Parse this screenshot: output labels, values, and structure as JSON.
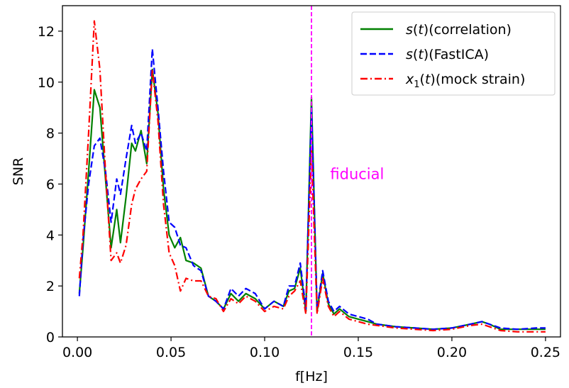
{
  "chart_data": {
    "type": "line",
    "xlabel": "f[Hz]",
    "ylabel": "SNR",
    "xlim": [
      -0.008,
      0.258
    ],
    "ylim": [
      0,
      13
    ],
    "xticks": [
      0.0,
      0.05,
      0.1,
      0.15,
      0.2,
      0.25
    ],
    "xtick_labels": [
      "0.00",
      "0.05",
      "0.10",
      "0.15",
      "0.20",
      "0.25"
    ],
    "yticks": [
      0,
      2,
      4,
      6,
      8,
      10,
      12
    ],
    "ytick_labels": [
      "0",
      "2",
      "4",
      "6",
      "8",
      "10",
      "12"
    ],
    "grid": false,
    "legend_placement": "upper right",
    "annotations": [
      {
        "text": "fiducial",
        "x": 0.135,
        "y": 6.2,
        "color": "#ff00ff"
      }
    ],
    "vline": {
      "x": 0.125,
      "color": "#ff00ff",
      "style": "dashed"
    },
    "series": [
      {
        "name": "s(t)(correlation)",
        "legend_parts": [
          "s",
          "(",
          "t",
          ")(correlation)"
        ],
        "color": "#008000",
        "dash": "solid",
        "x": [
          0.001,
          0.003,
          0.006,
          0.009,
          0.012,
          0.015,
          0.018,
          0.021,
          0.023,
          0.026,
          0.029,
          0.031,
          0.034,
          0.037,
          0.04,
          0.043,
          0.046,
          0.049,
          0.052,
          0.055,
          0.058,
          0.062,
          0.066,
          0.07,
          0.074,
          0.078,
          0.082,
          0.086,
          0.09,
          0.095,
          0.1,
          0.105,
          0.11,
          0.113,
          0.116,
          0.119,
          0.122,
          0.125,
          0.128,
          0.131,
          0.134,
          0.137,
          0.14,
          0.145,
          0.15,
          0.155,
          0.16,
          0.17,
          0.18,
          0.19,
          0.2,
          0.21,
          0.216,
          0.22,
          0.226,
          0.235,
          0.245,
          0.25
        ],
        "y": [
          1.7,
          3.5,
          6.5,
          9.7,
          9.0,
          6.2,
          3.5,
          5.0,
          3.7,
          5.5,
          7.6,
          7.3,
          8.1,
          6.8,
          10.5,
          8.8,
          5.8,
          4.0,
          3.5,
          3.9,
          3.0,
          2.9,
          2.7,
          1.6,
          1.4,
          1.1,
          1.7,
          1.4,
          1.7,
          1.5,
          1.1,
          1.4,
          1.2,
          1.8,
          1.9,
          2.7,
          1.0,
          9.4,
          1.0,
          2.5,
          1.3,
          0.9,
          1.1,
          0.8,
          0.7,
          0.6,
          0.5,
          0.4,
          0.35,
          0.3,
          0.35,
          0.5,
          0.6,
          0.5,
          0.3,
          0.3,
          0.3,
          0.3
        ]
      },
      {
        "name": "s(t)(FastICA)",
        "legend_parts": [
          "s",
          "(",
          "t",
          ")(FastICA)"
        ],
        "color": "#0000ff",
        "dash": "dashed",
        "x": [
          0.001,
          0.003,
          0.006,
          0.009,
          0.012,
          0.015,
          0.018,
          0.021,
          0.023,
          0.026,
          0.029,
          0.031,
          0.034,
          0.037,
          0.04,
          0.043,
          0.046,
          0.049,
          0.052,
          0.055,
          0.058,
          0.062,
          0.066,
          0.07,
          0.074,
          0.078,
          0.082,
          0.086,
          0.09,
          0.095,
          0.1,
          0.105,
          0.11,
          0.113,
          0.116,
          0.119,
          0.122,
          0.125,
          0.128,
          0.131,
          0.134,
          0.137,
          0.14,
          0.145,
          0.15,
          0.155,
          0.16,
          0.17,
          0.18,
          0.19,
          0.2,
          0.21,
          0.216,
          0.22,
          0.226,
          0.235,
          0.245,
          0.25
        ],
        "y": [
          1.6,
          3.8,
          6.0,
          7.5,
          7.8,
          6.5,
          4.5,
          6.2,
          5.6,
          7.0,
          8.3,
          7.6,
          8.0,
          7.3,
          11.3,
          9.0,
          6.5,
          4.5,
          4.3,
          3.6,
          3.5,
          2.8,
          2.6,
          1.6,
          1.4,
          1.1,
          1.9,
          1.6,
          1.9,
          1.7,
          1.1,
          1.4,
          1.2,
          2.0,
          2.0,
          2.9,
          1.1,
          9.0,
          1.1,
          2.6,
          1.4,
          1.0,
          1.2,
          0.9,
          0.8,
          0.7,
          0.5,
          0.4,
          0.35,
          0.3,
          0.35,
          0.5,
          0.6,
          0.5,
          0.35,
          0.3,
          0.35,
          0.35
        ]
      },
      {
        "name": "x1(t)(mock strain)",
        "legend_parts": [
          "x",
          "1",
          "(",
          "t",
          ")(mock strain)"
        ],
        "color": "#ff0000",
        "dash": "dashdot",
        "x": [
          0.001,
          0.003,
          0.006,
          0.009,
          0.012,
          0.015,
          0.018,
          0.021,
          0.023,
          0.026,
          0.029,
          0.031,
          0.034,
          0.037,
          0.04,
          0.043,
          0.046,
          0.049,
          0.052,
          0.055,
          0.058,
          0.062,
          0.066,
          0.07,
          0.074,
          0.078,
          0.082,
          0.086,
          0.09,
          0.095,
          0.1,
          0.105,
          0.11,
          0.113,
          0.116,
          0.119,
          0.122,
          0.125,
          0.128,
          0.131,
          0.134,
          0.137,
          0.14,
          0.145,
          0.15,
          0.155,
          0.16,
          0.17,
          0.18,
          0.19,
          0.2,
          0.21,
          0.216,
          0.22,
          0.226,
          0.235,
          0.245,
          0.25
        ],
        "y": [
          2.3,
          4.0,
          8.0,
          12.4,
          10.5,
          6.5,
          3.0,
          3.3,
          2.9,
          3.6,
          5.2,
          5.8,
          6.2,
          6.5,
          10.5,
          8.5,
          5.2,
          3.3,
          2.8,
          1.8,
          2.3,
          2.2,
          2.2,
          1.6,
          1.5,
          1.0,
          1.5,
          1.3,
          1.6,
          1.4,
          1.0,
          1.2,
          1.1,
          1.6,
          1.8,
          2.2,
          0.9,
          7.3,
          0.9,
          2.3,
          1.2,
          0.8,
          1.0,
          0.7,
          0.6,
          0.5,
          0.45,
          0.35,
          0.3,
          0.25,
          0.3,
          0.45,
          0.5,
          0.4,
          0.25,
          0.2,
          0.2,
          0.2
        ]
      }
    ]
  }
}
